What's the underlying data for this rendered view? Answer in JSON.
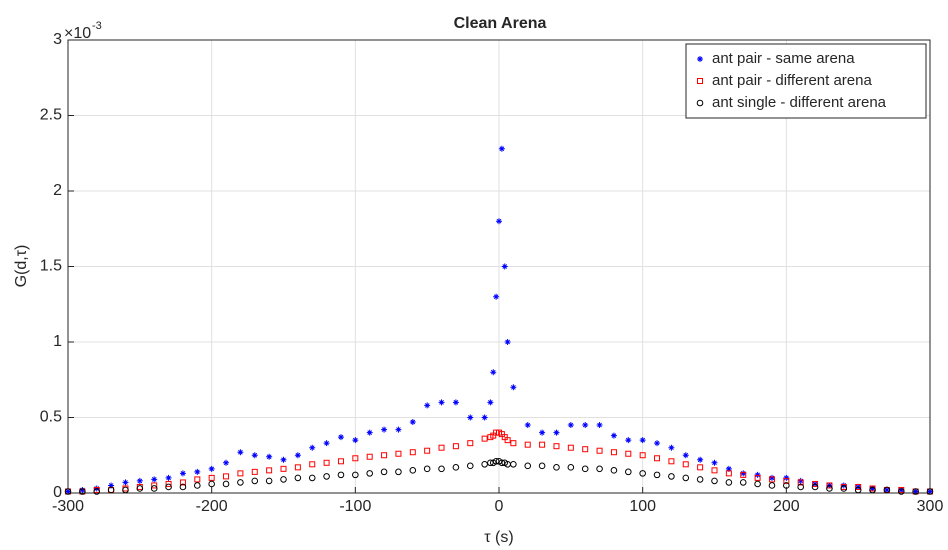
{
  "chart_data": {
    "type": "scatter",
    "title": "Clean Arena",
    "x_label": "τ (s)",
    "y_label": "G(d,τ)",
    "y_exponent_base": "×10",
    "y_exponent": "-3",
    "x": [
      -300,
      -290,
      -280,
      -270,
      -260,
      -250,
      -240,
      -230,
      -220,
      -210,
      -200,
      -190,
      -180,
      -170,
      -160,
      -150,
      -140,
      -130,
      -120,
      -110,
      -100,
      -90,
      -80,
      -70,
      -60,
      -50,
      -40,
      -30,
      -20,
      -10,
      -6,
      -4,
      -2,
      0,
      2,
      4,
      6,
      10,
      20,
      30,
      40,
      50,
      60,
      70,
      80,
      90,
      100,
      110,
      120,
      130,
      140,
      150,
      160,
      170,
      180,
      190,
      200,
      210,
      220,
      230,
      240,
      250,
      260,
      270,
      280,
      290,
      300
    ],
    "series": [
      {
        "name": "ant pair - same arena",
        "color": "#0000ff",
        "marker": "star",
        "values": [
          0.01,
          0.02,
          0.03,
          0.05,
          0.07,
          0.08,
          0.09,
          0.1,
          0.13,
          0.14,
          0.16,
          0.2,
          0.27,
          0.25,
          0.24,
          0.22,
          0.25,
          0.3,
          0.33,
          0.37,
          0.35,
          0.4,
          0.42,
          0.42,
          0.47,
          0.58,
          0.6,
          0.6,
          0.5,
          0.5,
          0.6,
          0.8,
          1.3,
          1.8,
          2.28,
          1.5,
          1.0,
          0.7,
          0.45,
          0.4,
          0.4,
          0.45,
          0.45,
          0.45,
          0.38,
          0.35,
          0.35,
          0.33,
          0.3,
          0.25,
          0.22,
          0.2,
          0.16,
          0.13,
          0.12,
          0.1,
          0.1,
          0.08,
          0.06,
          0.05,
          0.05,
          0.04,
          0.03,
          0.02,
          0.02,
          0.01,
          0.01
        ]
      },
      {
        "name": "ant pair - different arena",
        "color": "#ff0000",
        "marker": "square",
        "values": [
          0.01,
          0.01,
          0.02,
          0.02,
          0.03,
          0.04,
          0.05,
          0.06,
          0.07,
          0.09,
          0.1,
          0.11,
          0.13,
          0.14,
          0.15,
          0.16,
          0.17,
          0.19,
          0.2,
          0.21,
          0.23,
          0.24,
          0.25,
          0.26,
          0.27,
          0.28,
          0.3,
          0.31,
          0.33,
          0.36,
          0.37,
          0.38,
          0.4,
          0.4,
          0.39,
          0.37,
          0.35,
          0.33,
          0.32,
          0.32,
          0.31,
          0.3,
          0.29,
          0.28,
          0.27,
          0.26,
          0.25,
          0.23,
          0.21,
          0.19,
          0.17,
          0.15,
          0.13,
          0.12,
          0.1,
          0.09,
          0.08,
          0.07,
          0.06,
          0.05,
          0.04,
          0.04,
          0.03,
          0.02,
          0.02,
          0.01,
          0.01
        ]
      },
      {
        "name": "ant single - different arena",
        "color": "#000000",
        "marker": "circle",
        "values": [
          0.01,
          0.01,
          0.01,
          0.02,
          0.02,
          0.03,
          0.03,
          0.04,
          0.04,
          0.05,
          0.06,
          0.06,
          0.07,
          0.08,
          0.08,
          0.09,
          0.1,
          0.1,
          0.11,
          0.12,
          0.12,
          0.13,
          0.14,
          0.14,
          0.15,
          0.16,
          0.16,
          0.17,
          0.18,
          0.19,
          0.2,
          0.2,
          0.21,
          0.21,
          0.2,
          0.2,
          0.19,
          0.19,
          0.18,
          0.18,
          0.17,
          0.17,
          0.16,
          0.16,
          0.15,
          0.14,
          0.13,
          0.12,
          0.11,
          0.1,
          0.09,
          0.08,
          0.07,
          0.07,
          0.06,
          0.05,
          0.05,
          0.04,
          0.04,
          0.03,
          0.03,
          0.02,
          0.02,
          0.02,
          0.01,
          0.01,
          0.01
        ]
      }
    ],
    "xlim": [
      -300,
      300
    ],
    "xticks": [
      -300,
      -200,
      -100,
      0,
      100,
      200,
      300
    ],
    "ylim": [
      0,
      3
    ],
    "yticks": [
      0,
      0.5,
      1,
      1.5,
      2,
      2.5,
      3
    ],
    "grid": true,
    "legend": "top-right"
  }
}
